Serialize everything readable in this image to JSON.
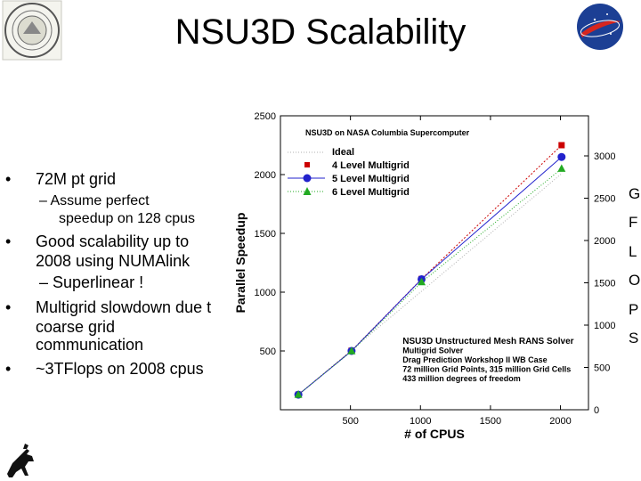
{
  "slide": {
    "title": "NSU3D Scalability",
    "logos": {
      "left_seal": "university-seal",
      "right_logo": "nasa-logo",
      "bottom_left": "cowboy-logo"
    },
    "bullets": [
      {
        "text": "72M pt grid",
        "sub": [
          "– Assume perfect",
          "speedup on 128 cpus"
        ]
      },
      {
        "lines": [
          "Good scalability up to",
          "2008 using NUMAlink"
        ],
        "sub": [
          "– Superlinear !"
        ]
      },
      {
        "lines": [
          "Multigrid slowdown due t",
          "coarse grid",
          "communication"
        ]
      },
      {
        "text": "~3TFlops on 2008 cpus"
      }
    ],
    "bullet_glyph": "•",
    "right_edge_letters": [
      "G",
      "F",
      "L",
      "O",
      "P",
      "S"
    ]
  },
  "chart_data": {
    "type": "line",
    "title": "NSU3D on NASA Columbia Supercomputer",
    "xlabel": "# of CPUS",
    "ylabel": "Parallel Speedup",
    "xlim": [
      0,
      2200
    ],
    "ylim": [
      0,
      2500
    ],
    "x_ticks": [
      500,
      1000,
      1500,
      2000
    ],
    "y_ticks": [
      500,
      1000,
      1500,
      2000,
      2500
    ],
    "y2_ticks": [
      0,
      500,
      1000,
      1500,
      2000,
      2500,
      3000
    ],
    "y2_label": "",
    "series": [
      {
        "name": "Ideal",
        "color": "#b0b0b0",
        "dash": "dotted",
        "marker": "none",
        "x": [
          128,
          2008
        ],
        "y": [
          128,
          2008
        ]
      },
      {
        "name": "4 Level Multigrid",
        "color": "#cc0000",
        "marker": "square",
        "x": [
          128,
          508,
          1008,
          2008
        ],
        "y": [
          128,
          502,
          1112,
          2250
        ]
      },
      {
        "name": "5 Level Multigrid",
        "color": "#2222cc",
        "marker": "circle",
        "x": [
          128,
          508,
          1008,
          2008
        ],
        "y": [
          128,
          500,
          1110,
          2150
        ]
      },
      {
        "name": "6 Level Multigrid",
        "color": "#22aa22",
        "marker": "triangle",
        "x": [
          128,
          508,
          1008,
          2008
        ],
        "y": [
          128,
          498,
          1085,
          2050
        ]
      }
    ],
    "annotation": [
      "NSU3D Unstructured Mesh RANS Solver",
      "Multigrid Solver",
      "Drag Prediction Workshop II WB Case",
      "72 million Grid Points, 315 million Grid Cells",
      "433 million degrees of freedom"
    ],
    "grid": false,
    "legend_position": "top-left"
  }
}
